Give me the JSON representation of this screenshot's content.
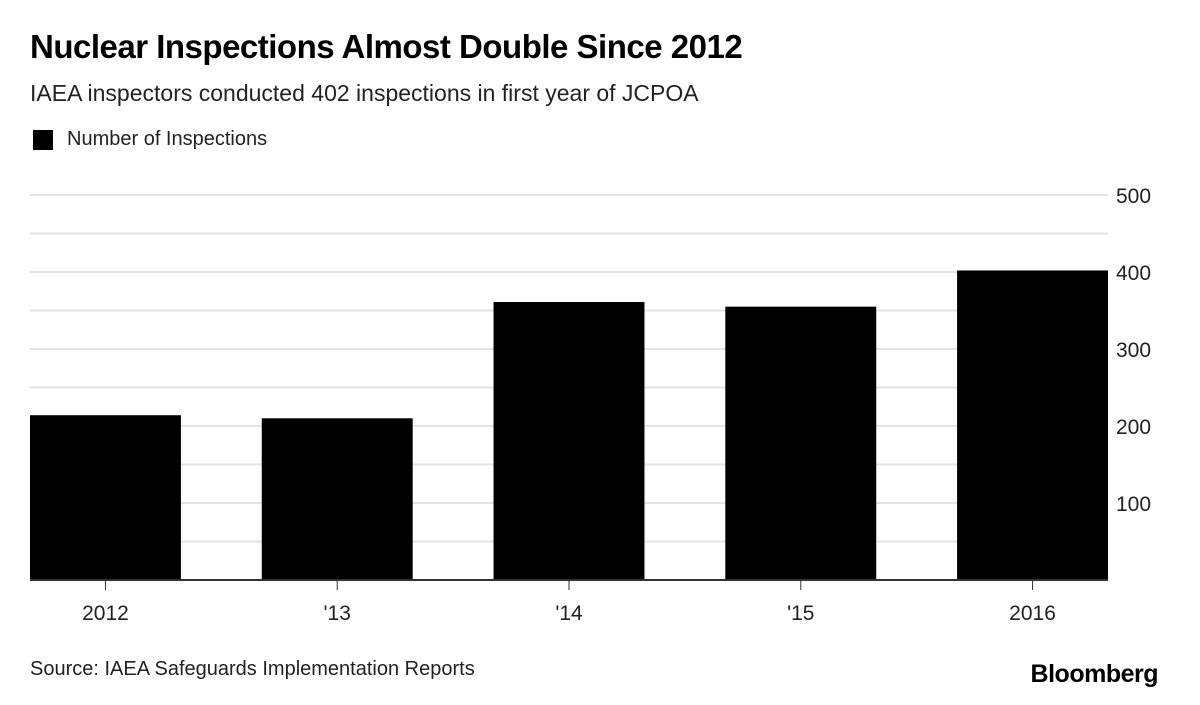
{
  "chart_data": {
    "type": "bar",
    "title": "Nuclear Inspections Almost Double Since 2012",
    "subtitle": "IAEA inspectors conducted 402 inspections in first year of JCPOA",
    "legend": [
      "Number of Inspections"
    ],
    "legend_placement": "top-left",
    "categories": [
      "2012",
      "'13",
      "'14",
      "'15",
      "2016"
    ],
    "series": [
      {
        "name": "Number of Inspections",
        "values": [
          214,
          210,
          361,
          355,
          402
        ],
        "color": "#000000"
      }
    ],
    "ylim": [
      0,
      500
    ],
    "yticks": [
      100,
      200,
      300,
      400,
      500
    ],
    "ytick_labels": [
      "100",
      "200",
      "300",
      "400",
      "500"
    ],
    "grid": true,
    "xlabel": "",
    "ylabel": "",
    "source": "Source: IAEA Safeguards Implementation Reports",
    "brand": "Bloomberg"
  }
}
